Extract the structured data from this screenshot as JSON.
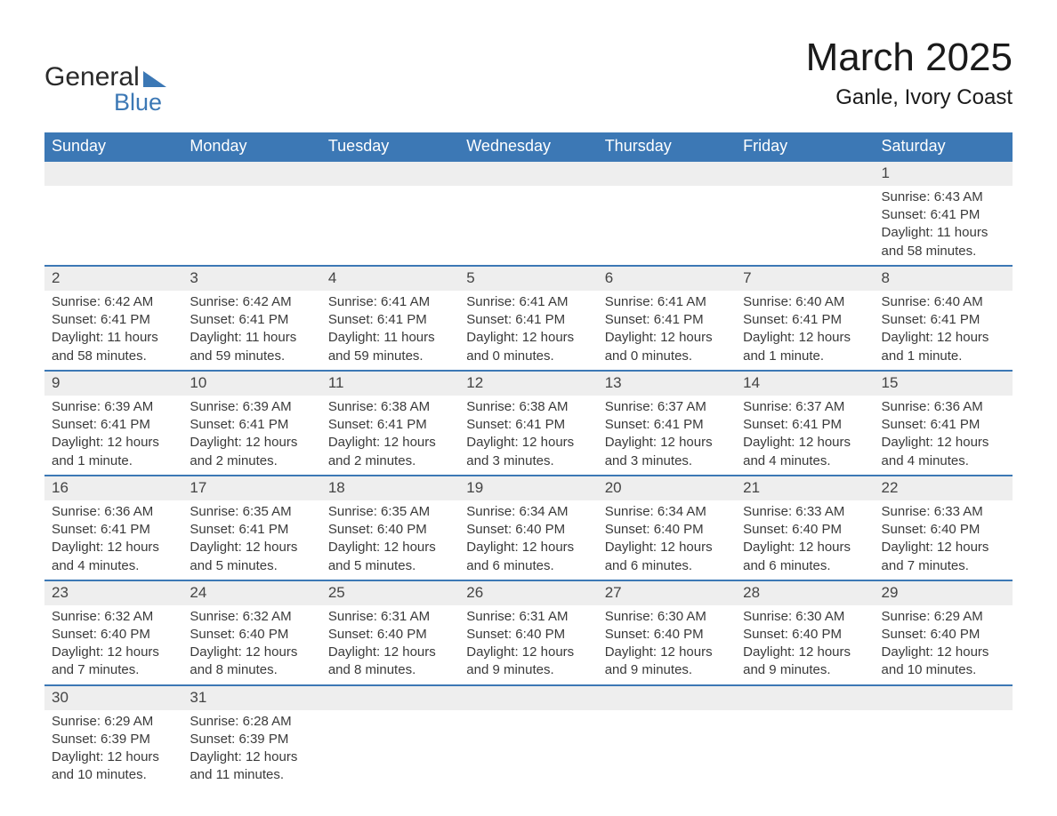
{
  "logo": {
    "text_general": "General",
    "text_blue": "Blue"
  },
  "title": "March 2025",
  "location": "Ganle, Ivory Coast",
  "colors": {
    "header_bg": "#3c78b5",
    "header_text": "#ffffff",
    "daynum_bg": "#eeeeee",
    "row_border": "#3c78b5",
    "text": "#333333"
  },
  "typography": {
    "title_fontsize": 44,
    "location_fontsize": 24,
    "header_fontsize": 18,
    "body_fontsize": 15
  },
  "columns": [
    "Sunday",
    "Monday",
    "Tuesday",
    "Wednesday",
    "Thursday",
    "Friday",
    "Saturday"
  ],
  "weeks": [
    [
      null,
      null,
      null,
      null,
      null,
      null,
      {
        "n": "1",
        "sr": "6:43 AM",
        "ss": "6:41 PM",
        "dl": "11 hours and 58 minutes."
      }
    ],
    [
      {
        "n": "2",
        "sr": "6:42 AM",
        "ss": "6:41 PM",
        "dl": "11 hours and 58 minutes."
      },
      {
        "n": "3",
        "sr": "6:42 AM",
        "ss": "6:41 PM",
        "dl": "11 hours and 59 minutes."
      },
      {
        "n": "4",
        "sr": "6:41 AM",
        "ss": "6:41 PM",
        "dl": "11 hours and 59 minutes."
      },
      {
        "n": "5",
        "sr": "6:41 AM",
        "ss": "6:41 PM",
        "dl": "12 hours and 0 minutes."
      },
      {
        "n": "6",
        "sr": "6:41 AM",
        "ss": "6:41 PM",
        "dl": "12 hours and 0 minutes."
      },
      {
        "n": "7",
        "sr": "6:40 AM",
        "ss": "6:41 PM",
        "dl": "12 hours and 1 minute."
      },
      {
        "n": "8",
        "sr": "6:40 AM",
        "ss": "6:41 PM",
        "dl": "12 hours and 1 minute."
      }
    ],
    [
      {
        "n": "9",
        "sr": "6:39 AM",
        "ss": "6:41 PM",
        "dl": "12 hours and 1 minute."
      },
      {
        "n": "10",
        "sr": "6:39 AM",
        "ss": "6:41 PM",
        "dl": "12 hours and 2 minutes."
      },
      {
        "n": "11",
        "sr": "6:38 AM",
        "ss": "6:41 PM",
        "dl": "12 hours and 2 minutes."
      },
      {
        "n": "12",
        "sr": "6:38 AM",
        "ss": "6:41 PM",
        "dl": "12 hours and 3 minutes."
      },
      {
        "n": "13",
        "sr": "6:37 AM",
        "ss": "6:41 PM",
        "dl": "12 hours and 3 minutes."
      },
      {
        "n": "14",
        "sr": "6:37 AM",
        "ss": "6:41 PM",
        "dl": "12 hours and 4 minutes."
      },
      {
        "n": "15",
        "sr": "6:36 AM",
        "ss": "6:41 PM",
        "dl": "12 hours and 4 minutes."
      }
    ],
    [
      {
        "n": "16",
        "sr": "6:36 AM",
        "ss": "6:41 PM",
        "dl": "12 hours and 4 minutes."
      },
      {
        "n": "17",
        "sr": "6:35 AM",
        "ss": "6:41 PM",
        "dl": "12 hours and 5 minutes."
      },
      {
        "n": "18",
        "sr": "6:35 AM",
        "ss": "6:40 PM",
        "dl": "12 hours and 5 minutes."
      },
      {
        "n": "19",
        "sr": "6:34 AM",
        "ss": "6:40 PM",
        "dl": "12 hours and 6 minutes."
      },
      {
        "n": "20",
        "sr": "6:34 AM",
        "ss": "6:40 PM",
        "dl": "12 hours and 6 minutes."
      },
      {
        "n": "21",
        "sr": "6:33 AM",
        "ss": "6:40 PM",
        "dl": "12 hours and 6 minutes."
      },
      {
        "n": "22",
        "sr": "6:33 AM",
        "ss": "6:40 PM",
        "dl": "12 hours and 7 minutes."
      }
    ],
    [
      {
        "n": "23",
        "sr": "6:32 AM",
        "ss": "6:40 PM",
        "dl": "12 hours and 7 minutes."
      },
      {
        "n": "24",
        "sr": "6:32 AM",
        "ss": "6:40 PM",
        "dl": "12 hours and 8 minutes."
      },
      {
        "n": "25",
        "sr": "6:31 AM",
        "ss": "6:40 PM",
        "dl": "12 hours and 8 minutes."
      },
      {
        "n": "26",
        "sr": "6:31 AM",
        "ss": "6:40 PM",
        "dl": "12 hours and 9 minutes."
      },
      {
        "n": "27",
        "sr": "6:30 AM",
        "ss": "6:40 PM",
        "dl": "12 hours and 9 minutes."
      },
      {
        "n": "28",
        "sr": "6:30 AM",
        "ss": "6:40 PM",
        "dl": "12 hours and 9 minutes."
      },
      {
        "n": "29",
        "sr": "6:29 AM",
        "ss": "6:40 PM",
        "dl": "12 hours and 10 minutes."
      }
    ],
    [
      {
        "n": "30",
        "sr": "6:29 AM",
        "ss": "6:39 PM",
        "dl": "12 hours and 10 minutes."
      },
      {
        "n": "31",
        "sr": "6:28 AM",
        "ss": "6:39 PM",
        "dl": "12 hours and 11 minutes."
      },
      null,
      null,
      null,
      null,
      null
    ]
  ],
  "labels": {
    "sunrise": "Sunrise: ",
    "sunset": "Sunset: ",
    "daylight": "Daylight: "
  }
}
